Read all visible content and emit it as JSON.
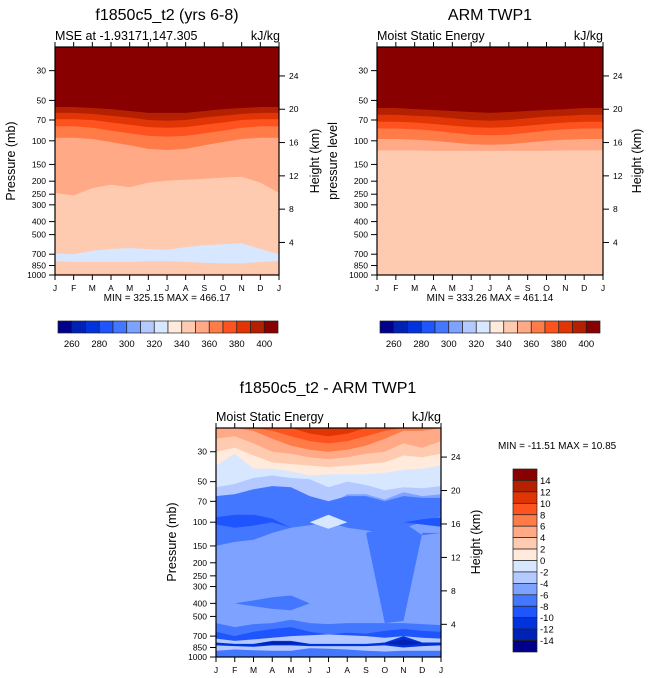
{
  "colors": {
    "levels16": [
      "#00008a",
      "#0022b4",
      "#0033dd",
      "#1f55ff",
      "#4477ff",
      "#7da2ff",
      "#b3c9ff",
      "#d7e7ff",
      "#ffeadb",
      "#ffcbb0",
      "#ffa986",
      "#ff7b48",
      "#ff531f",
      "#e13505",
      "#b52000",
      "#880000"
    ]
  },
  "months": [
    "J",
    "F",
    "M",
    "A",
    "M",
    "J",
    "J",
    "A",
    "S",
    "O",
    "N",
    "D",
    "J"
  ],
  "chart_data": [
    {
      "id": "model",
      "type": "heatmap",
      "title": "f1850c5_t2 (yrs 6-8)",
      "left_subtitle": "MSE at -1.93171,147.305",
      "right_subtitle": "kJ/kg",
      "ylabel": "Pressure (mb)",
      "y2label": "Height (km)",
      "xlabel": "",
      "x_ticks": [
        "J",
        "F",
        "M",
        "A",
        "M",
        "J",
        "J",
        "A",
        "S",
        "O",
        "N",
        "D",
        "J"
      ],
      "y_ticks": [
        30,
        50,
        70,
        100,
        150,
        200,
        250,
        300,
        400,
        500,
        700,
        850,
        1000
      ],
      "y2_ticks": [
        24,
        20,
        16,
        12,
        8,
        4
      ],
      "y_range_mb": [
        20,
        1000
      ],
      "minmax": "MIN = 325.15 MAX = 466.17",
      "min": 325.15,
      "max": 466.17,
      "colorbar": {
        "orientation": "horizontal",
        "labels": [
          "260",
          "280",
          "300",
          "320",
          "340",
          "360",
          "380",
          "400"
        ],
        "levels": [
          250,
          260,
          270,
          280,
          290,
          300,
          310,
          320,
          330,
          340,
          350,
          360,
          370,
          380,
          390,
          400
        ]
      },
      "contour_boundaries_mb": [
        {
          "upper_color_index": 15,
          "p": [
            56,
            56,
            57,
            58,
            60,
            62,
            62,
            62,
            60,
            58,
            57,
            56,
            56
          ]
        },
        {
          "upper_color_index": 14,
          "p": [
            62,
            62,
            63,
            65,
            67,
            70,
            71,
            70,
            67,
            65,
            63,
            62,
            62
          ]
        },
        {
          "upper_color_index": 13,
          "p": [
            69,
            69,
            70,
            73,
            76,
            79,
            80,
            79,
            76,
            73,
            70,
            69,
            69
          ]
        },
        {
          "upper_color_index": 12,
          "p": [
            78,
            78,
            80,
            84,
            88,
            92,
            93,
            92,
            88,
            84,
            80,
            78,
            78
          ]
        },
        {
          "upper_color_index": 11,
          "p": [
            95,
            95,
            97,
            102,
            108,
            115,
            117,
            115,
            108,
            102,
            97,
            95,
            95
          ]
        },
        {
          "upper_color_index": 10,
          "p": [
            245,
            255,
            225,
            212,
            222,
            205,
            198,
            195,
            192,
            188,
            185,
            205,
            245
          ]
        },
        {
          "upper_color_index": 9,
          "p": [
            978,
            978,
            978,
            978,
            978,
            978,
            978,
            978,
            978,
            978,
            978,
            978,
            978
          ]
        }
      ],
      "blobs": [
        {
          "color_index": 7,
          "label": "blue region 700mb",
          "p_top": [
            690,
            700,
            660,
            640,
            630,
            640,
            650,
            620,
            600,
            590,
            580,
            640,
            700
          ],
          "p_bot": [
            790,
            800,
            800,
            800,
            800,
            790,
            790,
            800,
            810,
            820,
            820,
            800,
            790
          ]
        }
      ]
    },
    {
      "id": "obs",
      "type": "heatmap",
      "title": "ARM TWP1",
      "left_subtitle": "Moist Static Energy",
      "right_subtitle": "kJ/kg",
      "ylabel": "pressure level",
      "y2label": "Height (km)",
      "xlabel": "",
      "x_ticks": [
        "J",
        "F",
        "M",
        "A",
        "M",
        "J",
        "J",
        "A",
        "S",
        "O",
        "N",
        "D",
        "J"
      ],
      "y_ticks": [
        30,
        50,
        70,
        100,
        150,
        200,
        250,
        300,
        400,
        500,
        700,
        850,
        1000
      ],
      "y2_ticks": [
        24,
        20,
        16,
        12,
        8,
        4
      ],
      "y_range_mb": [
        20,
        1000
      ],
      "minmax": "MIN = 333.26 MAX = 461.14",
      "min": 333.26,
      "max": 461.14,
      "colorbar": {
        "orientation": "horizontal",
        "labels": [
          "260",
          "280",
          "300",
          "320",
          "340",
          "360",
          "380",
          "400"
        ],
        "levels": [
          250,
          260,
          270,
          280,
          290,
          300,
          310,
          320,
          330,
          340,
          350,
          360,
          370,
          380,
          390,
          400
        ]
      },
      "contour_boundaries_mb": [
        {
          "upper_color_index": 15,
          "p": [
            57,
            57,
            58,
            59,
            60,
            61,
            62,
            61,
            60,
            59,
            58,
            57,
            57
          ]
        },
        {
          "upper_color_index": 14,
          "p": [
            64,
            64,
            65,
            66,
            68,
            70,
            71,
            70,
            68,
            66,
            65,
            64,
            64
          ]
        },
        {
          "upper_color_index": 13,
          "p": [
            72,
            72,
            73,
            75,
            77,
            79,
            80,
            79,
            77,
            75,
            73,
            72,
            72
          ]
        },
        {
          "upper_color_index": 12,
          "p": [
            81,
            81,
            82,
            84,
            87,
            90,
            91,
            90,
            87,
            84,
            82,
            81,
            81
          ]
        },
        {
          "upper_color_index": 11,
          "p": [
            97,
            97,
            98,
            100,
            103,
            106,
            107,
            106,
            103,
            100,
            98,
            97,
            97
          ]
        },
        {
          "upper_color_index": 10,
          "p": [
            118,
            118,
            118,
            119,
            119,
            119,
            119,
            119,
            119,
            119,
            118,
            118,
            118
          ]
        },
        {
          "upper_color_index": 9,
          "p": [
            360,
            355,
            350,
            345,
            350,
            320,
            315,
            305,
            315,
            305,
            345,
            340,
            355
          ]
        },
        {
          "upper_color_index": 8,
          "p": [
            850,
            860,
            880,
            840,
            860,
            880,
            890,
            890,
            890,
            880,
            850,
            850,
            850
          ]
        }
      ],
      "blobs": []
    },
    {
      "id": "diff",
      "type": "heatmap",
      "title": "f1850c5_t2 - ARM TWP1",
      "left_subtitle": "Moist Static Energy",
      "right_subtitle": "kJ/kg",
      "ylabel": "Pressure (mb)",
      "y2label": "Height (km)",
      "xlabel": "",
      "x_ticks": [
        "J",
        "F",
        "M",
        "A",
        "M",
        "J",
        "J",
        "A",
        "S",
        "O",
        "N",
        "D",
        "J"
      ],
      "y_ticks": [
        30,
        50,
        70,
        100,
        150,
        200,
        250,
        300,
        400,
        500,
        700,
        850,
        1000
      ],
      "y2_ticks": [
        24,
        20,
        16,
        12,
        8,
        4
      ],
      "y_range_mb": [
        20,
        1000
      ],
      "minmax": "MIN = -11.51 MAX =  10.85",
      "min": -11.51,
      "max": 10.85,
      "colorbar": {
        "orientation": "vertical",
        "labels": [
          "14",
          "12",
          "10",
          "8",
          "6",
          "4",
          "2",
          "0",
          "-2",
          "-4",
          "-6",
          "-8",
          "-10",
          "-12",
          "-14"
        ],
        "levels": [
          -14,
          -12,
          -10,
          -8,
          -6,
          -4,
          -2,
          0,
          2,
          4,
          6,
          8,
          10,
          12,
          14
        ]
      },
      "contour_boundaries_mb": [
        {
          "upper_color_index": 13,
          "p": [
            20,
            20,
            20,
            20,
            20,
            22,
            23,
            22,
            20,
            20,
            20,
            20,
            20
          ]
        },
        {
          "upper_color_index": 12,
          "p": [
            20,
            20,
            20,
            21,
            23,
            25,
            26,
            25,
            23,
            21,
            20,
            20,
            20
          ]
        },
        {
          "upper_color_index": 11,
          "p": [
            20,
            20,
            21,
            24,
            27,
            29,
            30,
            29,
            27,
            24,
            21,
            21,
            20
          ]
        },
        {
          "upper_color_index": 10,
          "p": [
            24,
            23,
            26,
            30,
            31,
            33,
            34,
            33,
            31,
            30,
            26,
            28,
            25
          ]
        },
        {
          "upper_color_index": 9,
          "p": [
            30,
            28,
            32,
            36,
            37,
            38,
            39,
            38,
            37,
            36,
            32,
            33,
            31
          ]
        },
        {
          "upper_color_index": 8,
          "p": [
            38,
            31,
            40,
            40,
            42,
            45,
            44,
            44,
            44,
            43,
            41,
            40,
            38
          ]
        },
        {
          "upper_color_index": 7,
          "p": [
            55,
            52,
            47,
            45,
            47,
            48,
            55,
            50,
            53,
            58,
            55,
            56,
            54
          ]
        },
        {
          "upper_color_index": 6,
          "p": [
            64,
            62,
            57,
            54,
            55,
            70,
            75,
            62,
            62,
            68,
            60,
            64,
            62
          ]
        },
        {
          "upper_color_index": 5,
          "p": [
            560,
            600,
            570,
            560,
            530,
            560,
            570,
            560,
            560,
            560,
            560,
            570,
            580
          ]
        },
        {
          "upper_color_index": 4,
          "p": [
            650,
            700,
            650,
            620,
            600,
            650,
            680,
            660,
            670,
            640,
            620,
            640,
            650
          ]
        },
        {
          "upper_color_index": 3,
          "p": [
            730,
            760,
            740,
            720,
            700,
            690,
            680,
            690,
            700,
            720,
            700,
            720,
            730
          ]
        },
        {
          "upper_color_index": 4,
          "p": [
            900,
            880,
            890,
            900,
            900,
            860,
            870,
            880,
            900,
            910,
            900,
            900,
            900
          ]
        },
        {
          "upper_color_index": 5,
          "p": [
            960,
            960,
            960,
            960,
            960,
            930,
            930,
            940,
            950,
            960,
            960,
            960,
            960
          ]
        }
      ],
      "blobs": [
        {
          "color_index": 4,
          "label": "upper blue region",
          "p_top": [
            64,
            62,
            57,
            54,
            55,
            64,
            70,
            64,
            64,
            70,
            64,
            66,
            66
          ],
          "p_bot": [
            150,
            140,
            135,
            120,
            110,
            105,
            100,
            110,
            115,
            120,
            110,
            100,
            90
          ]
        },
        {
          "color_index": 3,
          "label": "dark blue 100mb left",
          "p_top": [
            92,
            88,
            88,
            94,
            110,
            110,
            110,
            110,
            110,
            110,
            110,
            110,
            110
          ],
          "p_bot": [
            104,
            110,
            106,
            100,
            110,
            110,
            110,
            110,
            110,
            110,
            110,
            110,
            110
          ]
        },
        {
          "color_index": 3,
          "label": "dark blue 100mb right",
          "p_top": [
            100,
            100,
            100,
            100,
            100,
            100,
            100,
            100,
            100,
            100,
            100,
            95,
            92
          ],
          "p_bot": [
            100,
            100,
            100,
            100,
            100,
            100,
            100,
            100,
            100,
            100,
            100,
            104,
            108
          ]
        },
        {
          "color_index": 4,
          "label": "right column",
          "p_top": [
            120,
            120,
            120,
            120,
            120,
            120,
            120,
            120,
            120,
            110,
            100,
            125,
            120
          ],
          "p_bot": [
            120,
            120,
            120,
            120,
            120,
            120,
            120,
            120,
            120,
            560,
            540,
            120,
            120
          ]
        },
        {
          "color_index": 4,
          "label": "400mb blob",
          "p_top": [
            400,
            400,
            380,
            360,
            350,
            400,
            400,
            400,
            400,
            400,
            400,
            400,
            400
          ],
          "p_bot": [
            400,
            400,
            420,
            440,
            450,
            400,
            400,
            400,
            400,
            400,
            400,
            400,
            400
          ]
        },
        {
          "color_index": 7,
          "label": "light 100mb July",
          "p_top": [
            100,
            100,
            100,
            100,
            100,
            100,
            88,
            100,
            100,
            100,
            100,
            100,
            100
          ],
          "p_bot": [
            100,
            100,
            100,
            100,
            100,
            100,
            112,
            100,
            100,
            100,
            100,
            100,
            100
          ]
        },
        {
          "color_index": 2,
          "label": "strong low-level left",
          "p_top": [
            780,
            800,
            800,
            760,
            760,
            800,
            800,
            800,
            800,
            780,
            700,
            780,
            780
          ],
          "p_bot": [
            820,
            830,
            840,
            820,
            820,
            830,
            830,
            830,
            830,
            820,
            850,
            830,
            820
          ]
        },
        {
          "color_index": 1,
          "label": "core low-level",
          "p_top": [
            800,
            800,
            800,
            770,
            775,
            800,
            800,
            800,
            800,
            790,
            740,
            790,
            800
          ],
          "p_bot": [
            800,
            800,
            800,
            810,
            805,
            800,
            800,
            800,
            800,
            790,
            820,
            790,
            800
          ]
        }
      ]
    }
  ],
  "diff_colors": [
    "#00008a",
    "#0022b4",
    "#0033dd",
    "#1f55ff",
    "#4477ff",
    "#7da2ff",
    "#b3c9ff",
    "#d7e7ff",
    "#ffeadb",
    "#ffcbb0",
    "#ffa986",
    "#ff7b48",
    "#ff531f",
    "#e13505",
    "#b52000",
    "#880000"
  ]
}
